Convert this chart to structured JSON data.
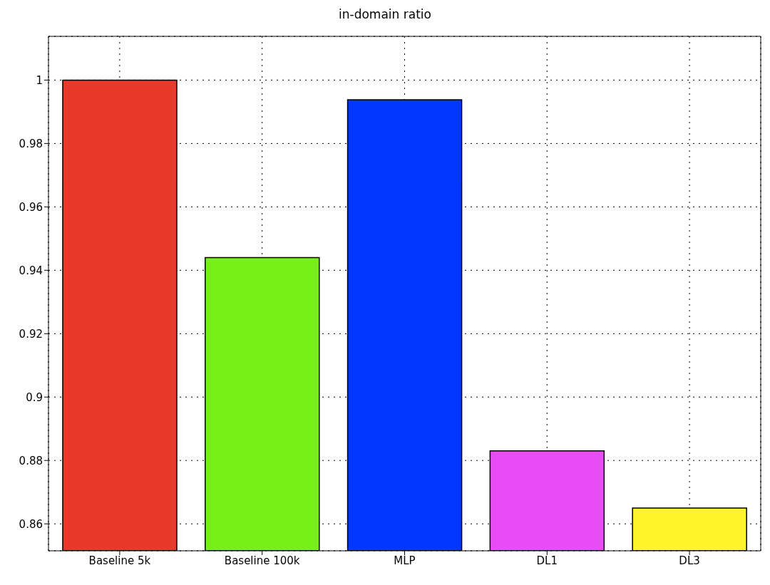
{
  "chart_data": {
    "type": "bar",
    "title": "in-domain ratio",
    "categories": [
      "Baseline 5k",
      "Baseline 100k",
      "MLP",
      "DL1",
      "DL3"
    ],
    "values": [
      1.0,
      0.944,
      0.9938,
      0.883,
      0.865
    ],
    "colors": [
      "#e8392a",
      "#76f016",
      "#0038ff",
      "#e84cf5",
      "#fff52a"
    ],
    "ylim": [
      0.8515,
      1.0138
    ],
    "yticks": [
      0.86,
      0.88,
      0.9,
      0.92,
      0.94,
      0.96,
      0.98,
      1
    ],
    "grid": true
  }
}
